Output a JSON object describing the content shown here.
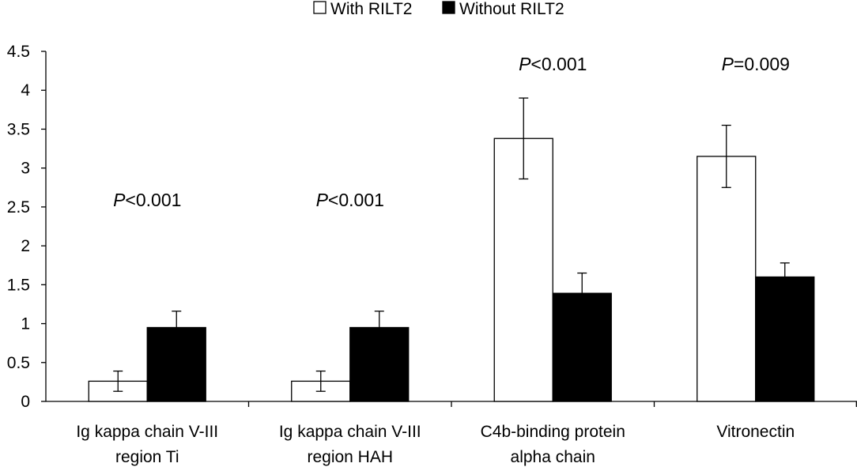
{
  "chart_data": {
    "type": "bar",
    "title": "",
    "xlabel": "",
    "ylabel": "",
    "ylim": [
      0,
      4.5
    ],
    "yticks": [
      "0",
      "0.5",
      "1",
      "1.5",
      "2",
      "2.5",
      "3",
      "3.5",
      "4",
      "4.5"
    ],
    "grid": false,
    "legend_position": "top-center",
    "categories": [
      [
        "Ig kappa chain V-III",
        "region Ti"
      ],
      [
        "Ig kappa chain V-III",
        "region HAH"
      ],
      [
        "C4b-binding protein",
        "alpha chain"
      ],
      [
        "Vitronectin"
      ]
    ],
    "series": [
      {
        "name": "With RILT2",
        "fill": "#ffffff",
        "values": [
          0.26,
          0.26,
          3.38,
          3.15
        ],
        "errors": [
          0.13,
          0.13,
          0.52,
          0.4
        ]
      },
      {
        "name": "Without RILT2",
        "fill": "#000000",
        "values": [
          0.95,
          0.95,
          1.39,
          1.6
        ],
        "errors": [
          0.21,
          0.21,
          0.26,
          0.18
        ]
      }
    ],
    "annotations": [
      {
        "category": 0,
        "p_label": "P",
        "text": "<0.001",
        "y": 2.6
      },
      {
        "category": 1,
        "p_label": "P",
        "text": "<0.001",
        "y": 2.6
      },
      {
        "category": 2,
        "p_label": "P",
        "text": "<0.001",
        "y": 4.35
      },
      {
        "category": 3,
        "p_label": "P",
        "text": "=0.009",
        "y": 4.35
      }
    ]
  }
}
